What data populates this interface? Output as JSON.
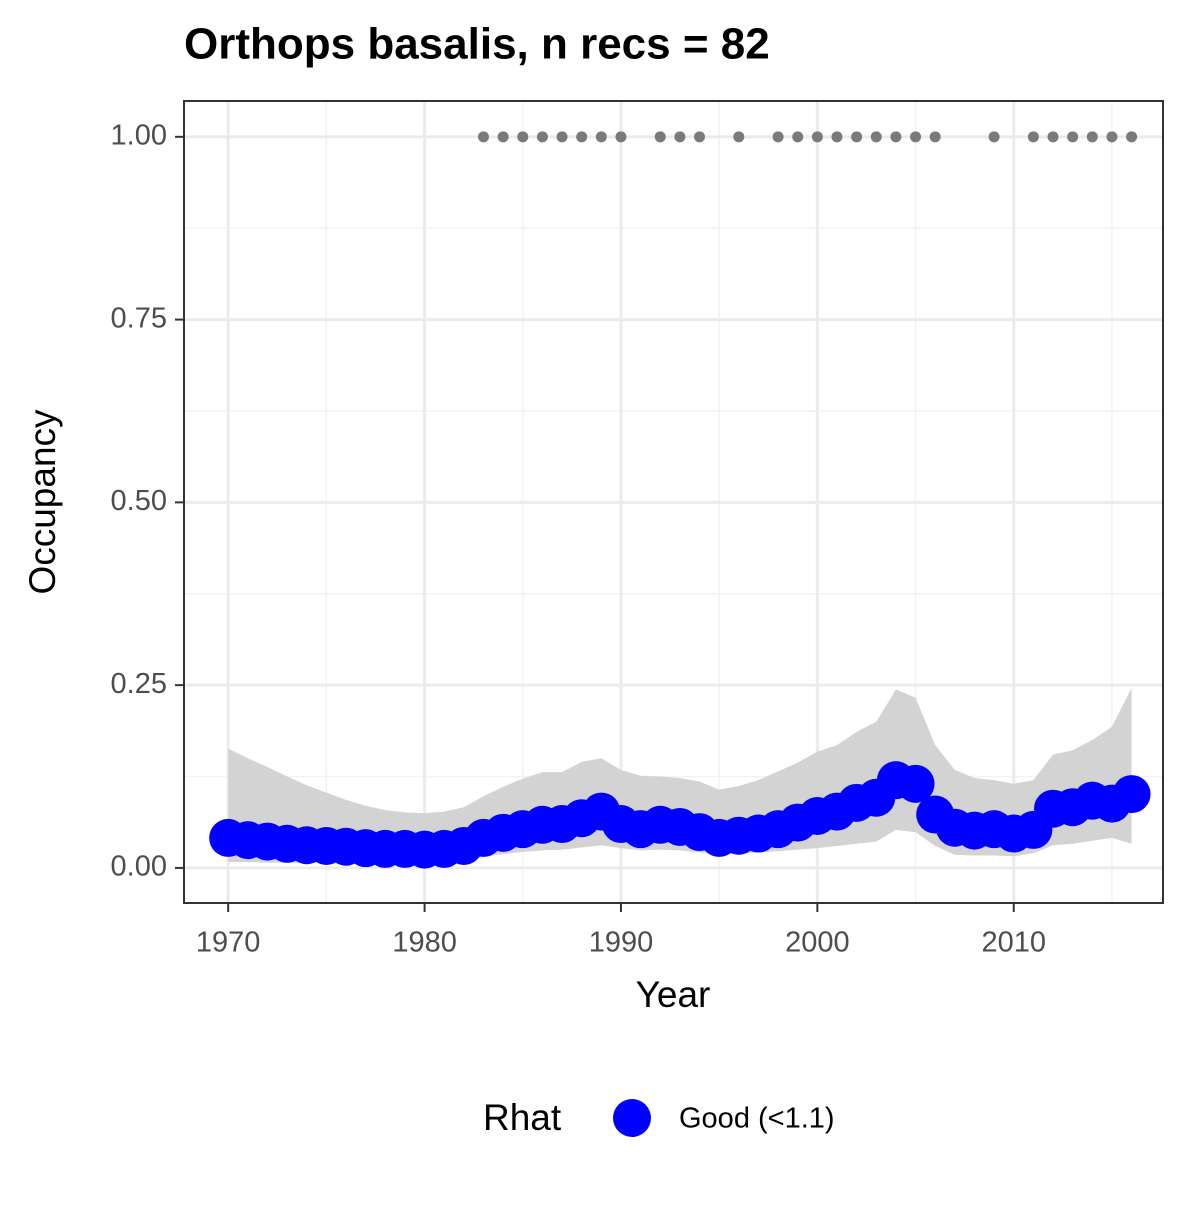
{
  "chart_data": {
    "type": "occupancy",
    "title": "Orthops basalis, n recs = 82",
    "x_label": "Year",
    "y_label": "Occupancy",
    "legend_title": "Rhat",
    "x": [
      1970,
      1971,
      1972,
      1973,
      1974,
      1975,
      1976,
      1977,
      1978,
      1979,
      1980,
      1981,
      1982,
      1983,
      1984,
      1985,
      1986,
      1987,
      1988,
      1989,
      1990,
      1991,
      1992,
      1993,
      1994,
      1995,
      1996,
      1997,
      1998,
      1999,
      2000,
      2001,
      2002,
      2003,
      2004,
      2005,
      2006,
      2007,
      2008,
      2009,
      2010,
      2011,
      2012,
      2013,
      2014,
      2015,
      2016
    ],
    "series": [
      {
        "name": "Good (<1.1)",
        "color": "#0000ff",
        "values": [
          0.041,
          0.038,
          0.036,
          0.033,
          0.031,
          0.03,
          0.029,
          0.027,
          0.026,
          0.026,
          0.025,
          0.026,
          0.03,
          0.041,
          0.048,
          0.053,
          0.059,
          0.06,
          0.068,
          0.077,
          0.06,
          0.053,
          0.059,
          0.056,
          0.049,
          0.041,
          0.044,
          0.047,
          0.053,
          0.062,
          0.071,
          0.077,
          0.089,
          0.096,
          0.12,
          0.115,
          0.073,
          0.055,
          0.051,
          0.053,
          0.047,
          0.052,
          0.081,
          0.083,
          0.092,
          0.088,
          0.101
        ]
      }
    ],
    "band": {
      "color": "#d3d3d3",
      "upper": [
        0.163,
        0.15,
        0.138,
        0.125,
        0.113,
        0.103,
        0.093,
        0.085,
        0.079,
        0.076,
        0.075,
        0.077,
        0.083,
        0.098,
        0.111,
        0.122,
        0.131,
        0.131,
        0.145,
        0.15,
        0.134,
        0.126,
        0.125,
        0.123,
        0.118,
        0.107,
        0.112,
        0.12,
        0.132,
        0.144,
        0.159,
        0.168,
        0.186,
        0.2,
        0.244,
        0.233,
        0.168,
        0.134,
        0.123,
        0.12,
        0.115,
        0.12,
        0.155,
        0.161,
        0.175,
        0.193,
        0.246
      ],
      "lower": [
        0.008,
        0.008,
        0.007,
        0.007,
        0.007,
        0.007,
        0.007,
        0.007,
        0.007,
        0.007,
        0.007,
        0.008,
        0.01,
        0.015,
        0.019,
        0.022,
        0.024,
        0.025,
        0.028,
        0.031,
        0.027,
        0.024,
        0.025,
        0.024,
        0.021,
        0.018,
        0.019,
        0.021,
        0.023,
        0.025,
        0.027,
        0.03,
        0.033,
        0.036,
        0.052,
        0.049,
        0.03,
        0.018,
        0.017,
        0.017,
        0.016,
        0.02,
        0.031,
        0.033,
        0.037,
        0.041,
        0.033
      ]
    },
    "records": {
      "color": "#7a7a7a",
      "x": [
        1983,
        1984,
        1985,
        1986,
        1987,
        1988,
        1989,
        1990,
        1992,
        1993,
        1994,
        1996,
        1998,
        1999,
        2000,
        2001,
        2002,
        2003,
        2004,
        2005,
        2006,
        2009,
        2011,
        2012,
        2013,
        2014,
        2015,
        2016
      ],
      "values": [
        1,
        1,
        1,
        1,
        1,
        1,
        1,
        1,
        1,
        1,
        1,
        1,
        1,
        1,
        1,
        1,
        1,
        1,
        1,
        1,
        1,
        1,
        1,
        1,
        1,
        1,
        1,
        1
      ]
    },
    "xlim": [
      1967.75,
      2017.6
    ],
    "ylim": [
      -0.048,
      1.049
    ],
    "xticks": [
      1970,
      1980,
      1990,
      2000,
      2010
    ],
    "xminor": [
      1975,
      1985,
      1995,
      2005,
      2015
    ],
    "yticks": [
      {
        "value": 0,
        "label": "0.00"
      },
      {
        "value": 0.25,
        "label": "0.25"
      },
      {
        "value": 0.5,
        "label": "0.50"
      },
      {
        "value": 0.75,
        "label": "0.75"
      },
      {
        "value": 1,
        "label": "1.00"
      }
    ],
    "yminor": [
      0.125,
      0.375,
      0.625,
      0.875
    ],
    "grid": true
  }
}
